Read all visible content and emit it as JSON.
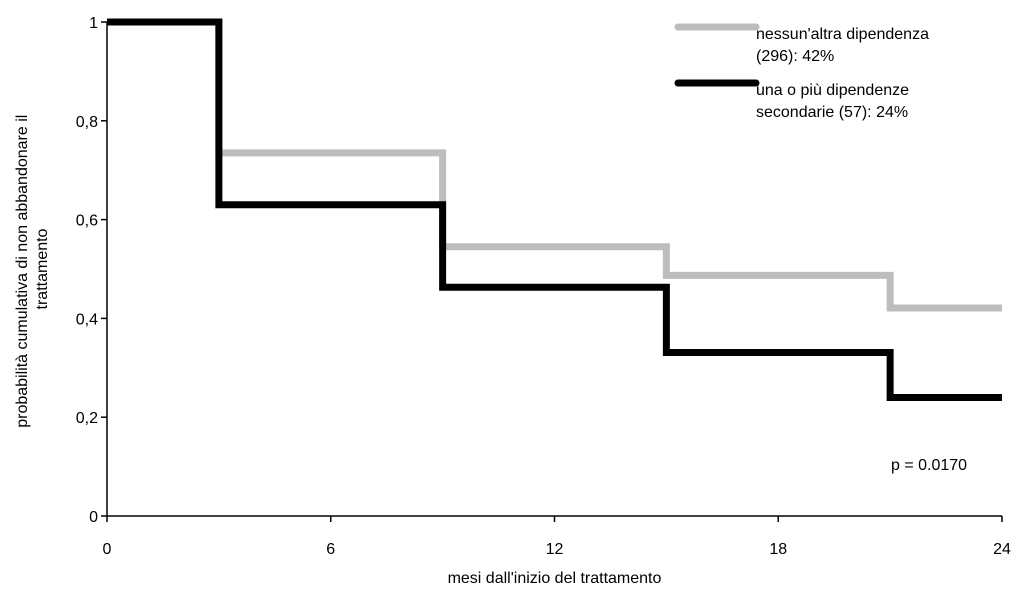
{
  "chart_data": {
    "type": "line",
    "step": true,
    "xlabel": "mesi dall'inizio del trattamento",
    "ylabel_lines": [
      "probabilità cumulativa di non abbandonare il",
      "trattamento"
    ],
    "xlim": [
      0,
      24
    ],
    "ylim": [
      0,
      1
    ],
    "xticks": [
      0,
      6,
      12,
      18,
      24
    ],
    "yticks": [
      {
        "value": 0,
        "label": "0"
      },
      {
        "value": 0.2,
        "label": "0,2"
      },
      {
        "value": 0.4,
        "label": "0,4"
      },
      {
        "value": 0.6,
        "label": "0,6"
      },
      {
        "value": 0.8,
        "label": "0,8"
      },
      {
        "value": 1,
        "label": "1"
      }
    ],
    "grid": false,
    "legend_position": "top-right",
    "annotation": "p = 0.0170",
    "series": [
      {
        "key": "none",
        "legend_lines": [
          "nessun'altra dipendenza",
          "(296): 42%"
        ],
        "color": "#bdbdbd",
        "x": [
          0,
          3,
          9,
          15,
          21,
          24
        ],
        "y": [
          1.0,
          0.735,
          0.545,
          0.487,
          0.421,
          0.421
        ]
      },
      {
        "key": "one_or_more",
        "legend_lines": [
          "una o più dipendenze",
          "secondarie (57): 24%"
        ],
        "color": "#000000",
        "x": [
          0,
          3,
          9,
          15,
          21,
          24
        ],
        "y": [
          1.0,
          0.63,
          0.463,
          0.331,
          0.24,
          0.24
        ]
      }
    ]
  }
}
